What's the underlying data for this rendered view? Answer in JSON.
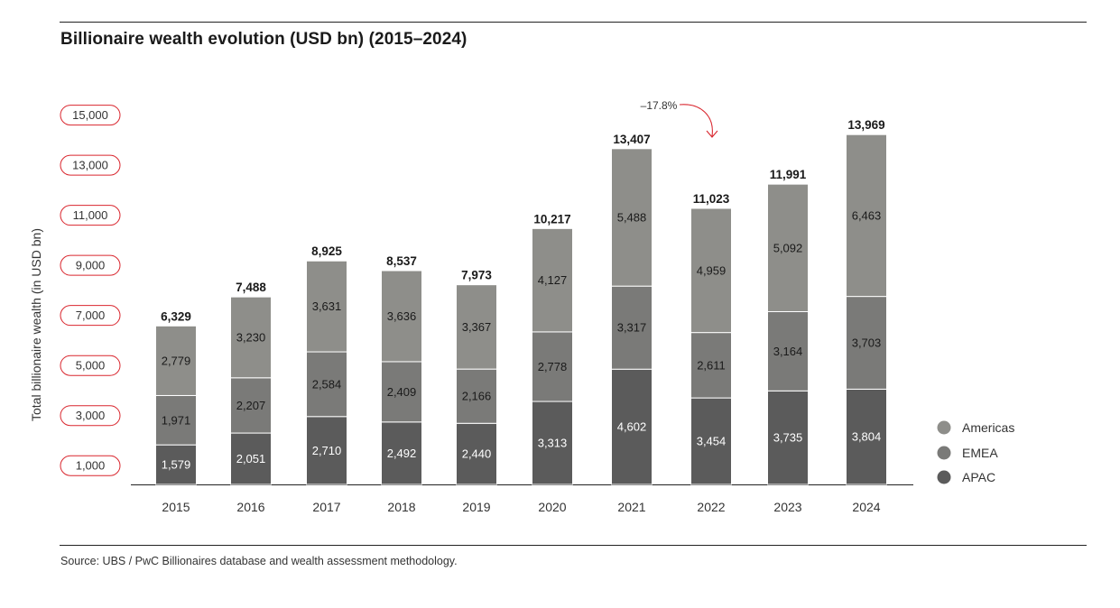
{
  "title": "Billionaire wealth evolution (USD bn) (2015–2024)",
  "source": "Source: UBS / PwC Billionaires database and wealth assessment methodology.",
  "chart_data": {
    "type": "bar",
    "stacked": true,
    "title": "Billionaire wealth evolution (USD bn) (2015–2024)",
    "xlabel": "",
    "ylabel": "Total billionaire wealth (in USD bn)",
    "ylim": [
      0,
      15800
    ],
    "yticks": [
      1000,
      3000,
      5000,
      7000,
      9000,
      11000,
      13000,
      15000
    ],
    "ytick_labels": [
      "1,000",
      "3,000",
      "5,000",
      "7,000",
      "9,000",
      "11,000",
      "13,000",
      "15,000"
    ],
    "categories": [
      "2015",
      "2016",
      "2017",
      "2018",
      "2019",
      "2020",
      "2021",
      "2022",
      "2023",
      "2024"
    ],
    "series": [
      {
        "name": "APAC",
        "color": "#5b5b5b",
        "values": [
          1579,
          2051,
          2710,
          2492,
          2440,
          3313,
          4602,
          3454,
          3735,
          3804
        ],
        "labels": [
          "1,579",
          "2,051",
          "2,710",
          "2,492",
          "2,440",
          "3,313",
          "4,602",
          "3,454",
          "3,735",
          "3,804"
        ]
      },
      {
        "name": "EMEA",
        "color": "#7a7a78",
        "values": [
          1971,
          2207,
          2584,
          2409,
          2166,
          2778,
          3317,
          2611,
          3164,
          3703
        ],
        "labels": [
          "1,971",
          "2,207",
          "2,584",
          "2,409",
          "2,166",
          "2,778",
          "3,317",
          "2,611",
          "3,164",
          "3,703"
        ]
      },
      {
        "name": "Americas",
        "color": "#8e8e8a",
        "values": [
          2779,
          3230,
          3631,
          3636,
          3367,
          4127,
          5488,
          4959,
          5092,
          6463
        ],
        "labels": [
          "2,779",
          "3,230",
          "3,631",
          "3,636",
          "3,367",
          "4,127",
          "5,488",
          "4,959",
          "5,092",
          "6,463"
        ]
      }
    ],
    "totals": [
      6329,
      7488,
      8925,
      8537,
      7973,
      10217,
      13407,
      11023,
      11991,
      13969
    ],
    "total_labels": [
      "6,329",
      "7,488",
      "8,925",
      "8,537",
      "7,973",
      "10,217",
      "13,407",
      "11,023",
      "11,991",
      "13,969"
    ],
    "legend": {
      "position": "right",
      "order": [
        "Americas",
        "EMEA",
        "APAC"
      ]
    },
    "annotations": [
      {
        "text": "–17.8%",
        "from": "2021",
        "to": "2022",
        "color": "#d9262e"
      }
    ],
    "grid": false,
    "tick_marker_color": "#d9262e"
  }
}
